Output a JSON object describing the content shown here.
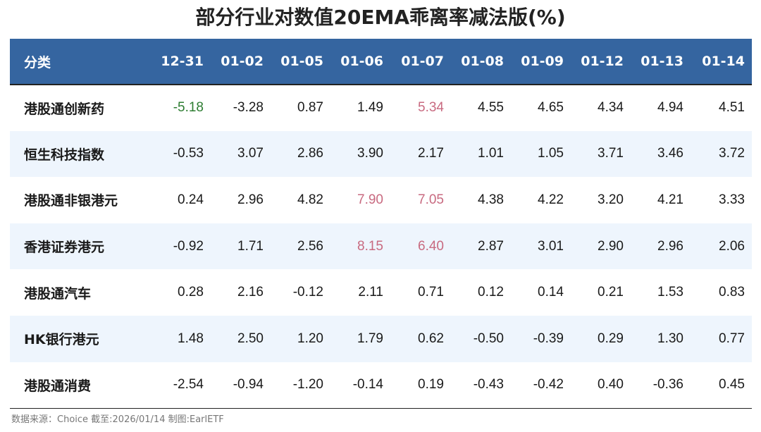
{
  "title": "部分行业对数值20EMA乖离率减法版(%)",
  "source": "数据来源：Choice 截至:2026/01/14 制图:EarlETF",
  "colors": {
    "header_bg": "#3565a0",
    "stripe": "#eef5fd",
    "low_highlight": "#2e7d32",
    "high_highlight": "#c86a80"
  },
  "chart_data": {
    "type": "table",
    "title": "部分行业对数值20EMA乖离率减法版(%)",
    "header_label": "分类",
    "columns": [
      "12-31",
      "01-02",
      "01-05",
      "01-06",
      "01-07",
      "01-08",
      "01-09",
      "01-12",
      "01-13",
      "01-14"
    ],
    "rows": [
      {
        "name": "港股通创新药",
        "values": [
          "-5.18",
          "-3.28",
          "0.87",
          "1.49",
          "5.34",
          "4.55",
          "4.65",
          "4.34",
          "4.94",
          "4.51"
        ],
        "highlight": [
          "low",
          "",
          "",
          "",
          "high",
          "",
          "",
          "",
          "",
          ""
        ]
      },
      {
        "name": "恒生科技指数",
        "values": [
          "-0.53",
          "3.07",
          "2.86",
          "3.90",
          "2.17",
          "1.01",
          "1.05",
          "3.71",
          "3.46",
          "3.72"
        ],
        "highlight": [
          "",
          "",
          "",
          "",
          "",
          "",
          "",
          "",
          "",
          ""
        ]
      },
      {
        "name": "港股通非银港元",
        "values": [
          "0.24",
          "2.96",
          "4.82",
          "7.90",
          "7.05",
          "4.38",
          "4.22",
          "3.20",
          "4.21",
          "3.33"
        ],
        "highlight": [
          "",
          "",
          "",
          "high",
          "high",
          "",
          "",
          "",
          "",
          ""
        ]
      },
      {
        "name": "香港证券港元",
        "values": [
          "-0.92",
          "1.71",
          "2.56",
          "8.15",
          "6.40",
          "2.87",
          "3.01",
          "2.90",
          "2.96",
          "2.06"
        ],
        "highlight": [
          "",
          "",
          "",
          "high",
          "high",
          "",
          "",
          "",
          "",
          ""
        ]
      },
      {
        "name": "港股通汽车",
        "values": [
          "0.28",
          "2.16",
          "-0.12",
          "2.11",
          "0.71",
          "0.12",
          "0.14",
          "0.21",
          "1.53",
          "0.83"
        ],
        "highlight": [
          "",
          "",
          "",
          "",
          "",
          "",
          "",
          "",
          "",
          ""
        ]
      },
      {
        "name": "HK银行港元",
        "values": [
          "1.48",
          "2.50",
          "1.20",
          "1.79",
          "0.62",
          "-0.50",
          "-0.39",
          "0.29",
          "1.30",
          "0.77"
        ],
        "highlight": [
          "",
          "",
          "",
          "",
          "",
          "",
          "",
          "",
          "",
          ""
        ]
      },
      {
        "name": "港股通消费",
        "values": [
          "-2.54",
          "-0.94",
          "-1.20",
          "-0.14",
          "0.19",
          "-0.43",
          "-0.42",
          "0.40",
          "-0.36",
          "0.45"
        ],
        "highlight": [
          "",
          "",
          "",
          "",
          "",
          "",
          "",
          "",
          "",
          ""
        ]
      }
    ]
  }
}
